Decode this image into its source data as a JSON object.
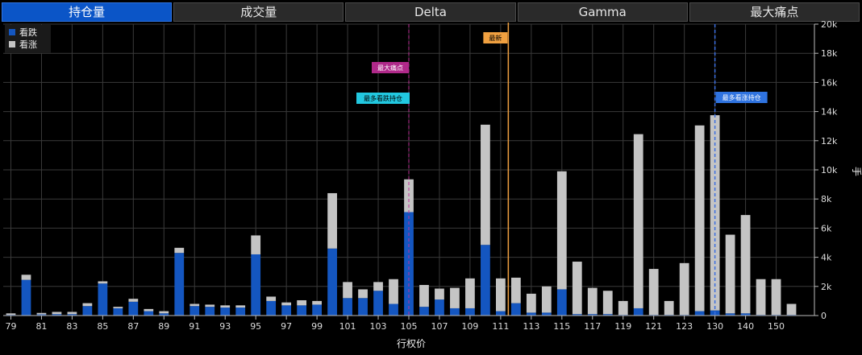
{
  "tabs": [
    {
      "label": "持仓量",
      "active": true
    },
    {
      "label": "成交量",
      "active": false
    },
    {
      "label": "Delta",
      "active": false
    },
    {
      "label": "Gamma",
      "active": false
    },
    {
      "label": "最大痛点",
      "active": false
    }
  ],
  "colors": {
    "put": "#1456c0",
    "call": "#c4c4c4",
    "latest": "#f0a040",
    "max_pain": "#c0309a",
    "most_call": "#3a6ee0"
  },
  "chart_data": {
    "type": "bar",
    "stacked": true,
    "xlabel": "行权价",
    "ylabel": "手",
    "ylim": [
      0,
      20000
    ],
    "y_ticks": [
      0,
      2000,
      4000,
      6000,
      8000,
      10000,
      12000,
      14000,
      16000,
      18000,
      20000
    ],
    "y_tick_labels": [
      "0",
      "2k",
      "4k",
      "6k",
      "8k",
      "10k",
      "12k",
      "14k",
      "16k",
      "18k",
      "20k"
    ],
    "grid": true,
    "legend_position": "top-left",
    "categories": [
      "79",
      "80",
      "81",
      "82",
      "83",
      "84",
      "85",
      "86",
      "87",
      "88",
      "89",
      "90",
      "91",
      "92",
      "93",
      "94",
      "95",
      "96",
      "97",
      "98",
      "99",
      "100",
      "101",
      "102",
      "103",
      "104",
      "105",
      "106",
      "107",
      "108",
      "109",
      "110",
      "111",
      "112",
      "113",
      "114",
      "115",
      "116",
      "117",
      "118",
      "119",
      "120",
      "121",
      "122",
      "123",
      "125",
      "130",
      "135",
      "140",
      "145",
      "150",
      "155",
      "160"
    ],
    "x_tick_labels": [
      "79",
      "",
      "81",
      "",
      "83",
      "",
      "85",
      "",
      "87",
      "",
      "89",
      "",
      "91",
      "",
      "93",
      "",
      "95",
      "",
      "97",
      "",
      "99",
      "",
      "101",
      "",
      "103",
      "",
      "105",
      "",
      "107",
      "",
      "109",
      "",
      "111",
      "",
      "113",
      "",
      "115",
      "",
      "117",
      "",
      "119",
      "",
      "121",
      "",
      "123",
      "",
      "130",
      "",
      "140",
      "",
      "150",
      "",
      ""
    ],
    "series": [
      {
        "name": "看跌",
        "values": [
          50,
          2450,
          80,
          100,
          100,
          650,
          2200,
          500,
          950,
          300,
          150,
          4300,
          650,
          600,
          550,
          550,
          4200,
          1000,
          700,
          700,
          750,
          4600,
          1200,
          1200,
          1700,
          800,
          7100,
          600,
          1100,
          500,
          500,
          4850,
          300,
          850,
          200,
          200,
          1800,
          100,
          100,
          100,
          50,
          500,
          50,
          50,
          50,
          300,
          350,
          150,
          150,
          50,
          50,
          50,
          0
        ]
      },
      {
        "name": "看涨",
        "values": [
          100,
          350,
          100,
          150,
          150,
          200,
          150,
          100,
          200,
          150,
          150,
          350,
          150,
          150,
          150,
          150,
          1300,
          300,
          200,
          350,
          250,
          3800,
          1100,
          600,
          600,
          1700,
          2250,
          1500,
          750,
          1400,
          2050,
          8250,
          2250,
          1750,
          1300,
          1800,
          8100,
          3600,
          1800,
          1600,
          950,
          11950,
          3150,
          950,
          3550,
          12750,
          13400,
          5400,
          6750,
          2450,
          2450,
          750,
          0
        ]
      }
    ],
    "annotations": [
      {
        "label": "最新",
        "x": "111.5"
      },
      {
        "label": "最大痛点",
        "x": "105"
      },
      {
        "label": "最多看跌持仓",
        "x": "105"
      },
      {
        "label": "最多看涨持仓",
        "x": "130"
      }
    ]
  }
}
